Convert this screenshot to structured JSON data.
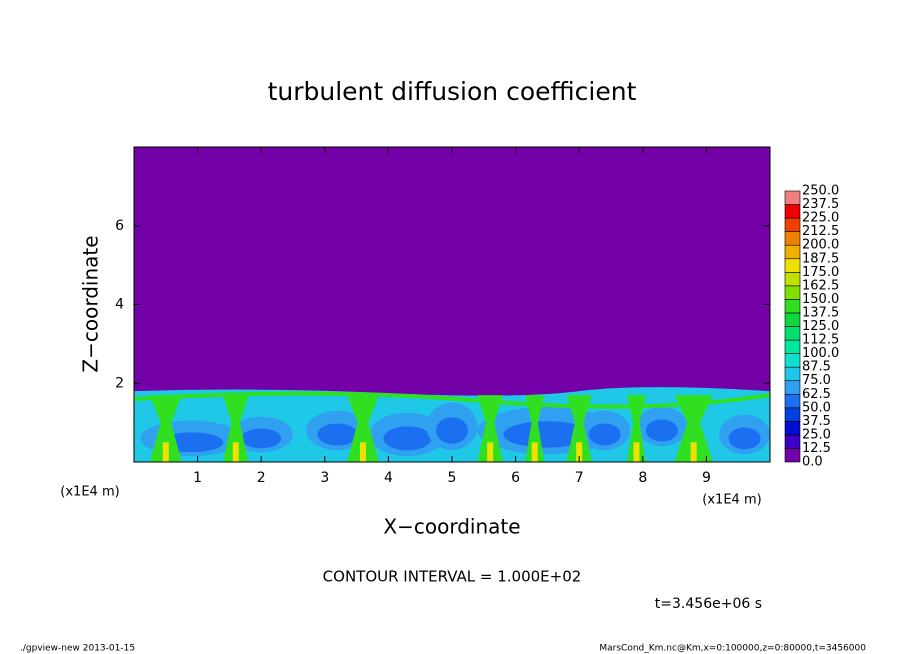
{
  "chart_data": {
    "type": "contour",
    "title": "turbulent diffusion coefficient",
    "x_label": "X−coordinate",
    "y_label": "Z−coordinate",
    "x_unit": "(x1E4 m)",
    "y_unit": "(x1E4 m)",
    "xlim": [
      0,
      10
    ],
    "ylim": [
      0,
      8
    ],
    "xticks": [
      1,
      2,
      3,
      4,
      5,
      6,
      7,
      8,
      9
    ],
    "yticks": [
      2,
      4,
      6
    ],
    "levels": [
      {
        "value": 0,
        "label": "0.0"
      },
      12.5,
      {
        "value": 25,
        "label": "25.0"
      },
      37.5,
      {
        "value": 50,
        "label": "50.0"
      },
      62.5,
      {
        "value": 75,
        "label": "75.0"
      },
      87.5,
      {
        "value": 100,
        "label": "100.0"
      },
      112.5,
      {
        "value": 125,
        "label": "125.0"
      },
      137.5,
      {
        "value": 150,
        "label": "150.0"
      },
      162.5,
      {
        "value": 175,
        "label": "175.0"
      },
      187.5,
      {
        "value": 200,
        "label": "200.0"
      },
      212.5,
      {
        "value": 225,
        "label": "225.0"
      },
      237.5,
      {
        "value": 250,
        "label": "250.0"
      }
    ],
    "colors": [
      "#7400a8",
      "#3c00c8",
      "#0010d0",
      "#0040e0",
      "#1a70f0",
      "#30a0f0",
      "#20c8e8",
      "#10e0d0",
      "#00e8a0",
      "#00e070",
      "#10d840",
      "#30e020",
      "#80e000",
      "#c0e000",
      "#f0e000",
      "#f0b000",
      "#f08000",
      "#f04000",
      "#f00000",
      "#f08080"
    ],
    "contour_interval": "CONTOUR INTERVAL = 1.000E+02",
    "time_label": "t=3.456e+06 s",
    "footer_left": "./gpview-new  2013-01-15",
    "footer_right": "MarsCond_Km.nc@Km,x=0:100000,z=0:80000,t=3456000"
  }
}
